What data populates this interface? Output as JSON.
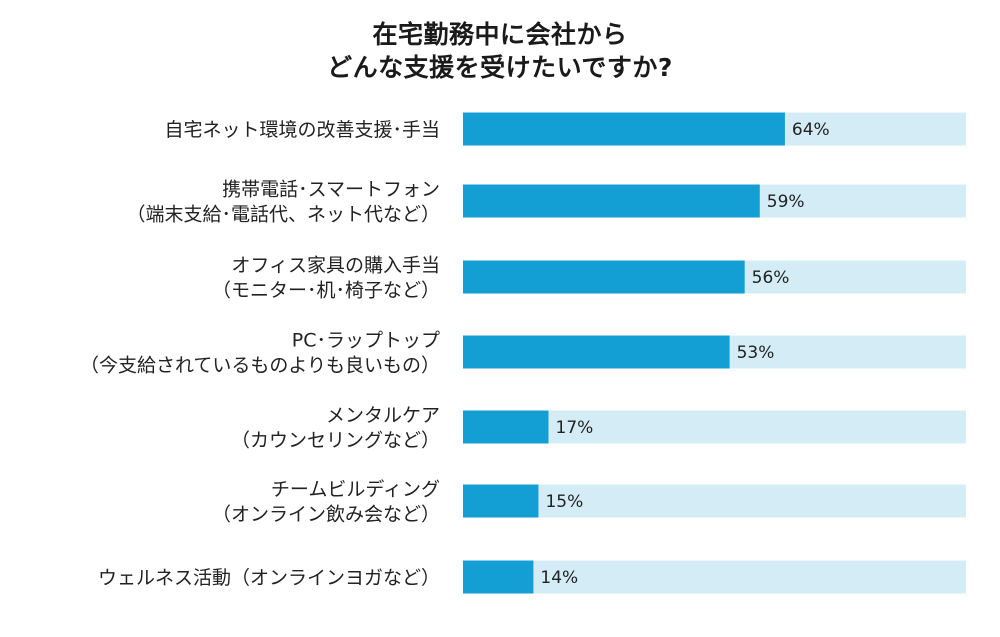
{
  "title_lines": [
    "在宅勤務中に会社から",
    "どんな支援を受けたいですか?"
  ],
  "colors": {
    "bar": "#139fd4",
    "track": "#d3ecf6",
    "text": "#222222"
  },
  "chart_data": {
    "type": "bar",
    "orientation": "horizontal",
    "title": "在宅勤務中に会社から どんな支援を受けたいですか?",
    "unit": "%",
    "xlim": [
      0,
      100
    ],
    "categories": [
      [
        "自宅ネット環境の改善支援･手当"
      ],
      [
        "携帯電話･スマートフォン",
        "（端末支給･電話代、ネット代など）"
      ],
      [
        "オフィス家具の購入手当",
        "（モニター･机･椅子など）"
      ],
      [
        "PC･ラップトップ",
        "（今支給されているものよりも良いもの）"
      ],
      [
        "メンタルケア",
        "（カウンセリングなど）"
      ],
      [
        "チームビルディング",
        "（オンライン飲み会など）"
      ],
      [
        "ウェルネス活動（オンラインヨガなど）"
      ]
    ],
    "values": [
      64,
      59,
      56,
      53,
      17,
      15,
      14
    ],
    "value_labels": [
      "64%",
      "59%",
      "56%",
      "53%",
      "17%",
      "15%",
      "14%"
    ]
  }
}
